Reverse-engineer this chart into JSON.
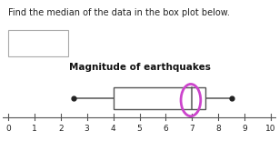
{
  "title": "Magnitude of earthquakes",
  "question_text": "Find the median of the data in the box plot below.",
  "xmin": 0,
  "xmax": 10,
  "whisker_min": 2.5,
  "q1": 4.0,
  "median": 7.0,
  "q3": 7.5,
  "whisker_max": 8.5,
  "box_facecolor": "#ffffff",
  "box_edgecolor": "#555555",
  "whisker_color": "#555555",
  "median_color": "#555555",
  "dot_color": "#222222",
  "ellipse_color": "#cc44cc",
  "axis_color": "#555555",
  "bg_color": "#ffffff",
  "answer_box_color": "#ffffff",
  "answer_box_edgecolor": "#aaaaaa",
  "title_fontsize": 7.5,
  "question_fontsize": 7,
  "tick_fontsize": 6.5
}
